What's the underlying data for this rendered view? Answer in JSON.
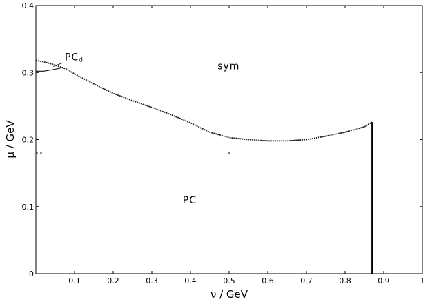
{
  "chart_data": {
    "type": "line",
    "title": "",
    "xlabel": "ν / GeV",
    "ylabel": "μ / GeV",
    "xlim": [
      0,
      1
    ],
    "ylim": [
      0,
      0.4
    ],
    "grid": false,
    "x_ticks": [
      "0.1",
      "0.2",
      "0.3",
      "0.4",
      "0.5",
      "0.6",
      "0.7",
      "0.8",
      "0.9",
      "1"
    ],
    "y_ticks": [
      "0",
      "0.1",
      "0.2",
      "0.3",
      "0.4"
    ],
    "series": [
      {
        "x": [
          0.0,
          0.02,
          0.04,
          0.06,
          0.08,
          0.1,
          0.15,
          0.2,
          0.25,
          0.3,
          0.35,
          0.4,
          0.45,
          0.5,
          0.55,
          0.6,
          0.65,
          0.7,
          0.75,
          0.8,
          0.85,
          0.87
        ],
        "y": [
          0.318,
          0.316,
          0.313,
          0.309,
          0.305,
          0.298,
          0.283,
          0.269,
          0.258,
          0.248,
          0.237,
          0.225,
          0.211,
          0.203,
          0.2,
          0.198,
          0.198,
          0.2,
          0.205,
          0.211,
          0.219,
          0.226
        ]
      },
      {
        "x": [
          0.0,
          0.02,
          0.04,
          0.06,
          0.07
        ],
        "y": [
          0.302,
          0.302,
          0.304,
          0.306,
          0.308
        ]
      },
      {
        "x": [
          0.87,
          0.87
        ],
        "y": [
          0.226,
          0.0
        ]
      },
      {
        "x": [
          0.0,
          0.02
        ],
        "y": [
          0.18,
          0.18
        ]
      },
      {
        "x": [
          0.5
        ],
        "y": [
          0.18
        ]
      }
    ],
    "annotations": [
      {
        "text": "sym",
        "x": 0.47,
        "y": 0.305
      },
      {
        "text": "PC",
        "x": 0.38,
        "y": 0.105
      },
      {
        "text": "PC",
        "sub": "d",
        "x": 0.075,
        "y": 0.318,
        "arrow_to_x": 0.045,
        "arrow_to_y": 0.309
      }
    ]
  }
}
